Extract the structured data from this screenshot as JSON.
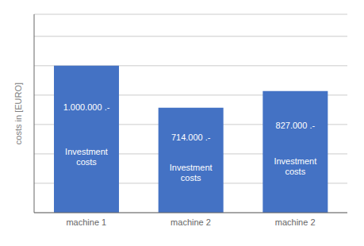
{
  "chart_data": {
    "type": "bar",
    "categories": [
      "machine 1",
      "machine 2",
      "machine 2"
    ],
    "values": [
      1000000,
      714000,
      827000
    ],
    "value_labels": [
      "1.000.000 .-",
      "714.000 .-",
      "827.000 .-"
    ],
    "annotations": [
      "Investment\ncosts",
      "Investment\ncosts",
      "Investment\ncosts"
    ],
    "color": "#4472C4",
    "ylabel": "costs in [EURO]",
    "ylim": [
      0,
      1350000
    ],
    "yticks": [
      0,
      200000,
      400000,
      600000,
      800000,
      1000000,
      1200000
    ],
    "grid": true,
    "tick_labels": "x"
  }
}
